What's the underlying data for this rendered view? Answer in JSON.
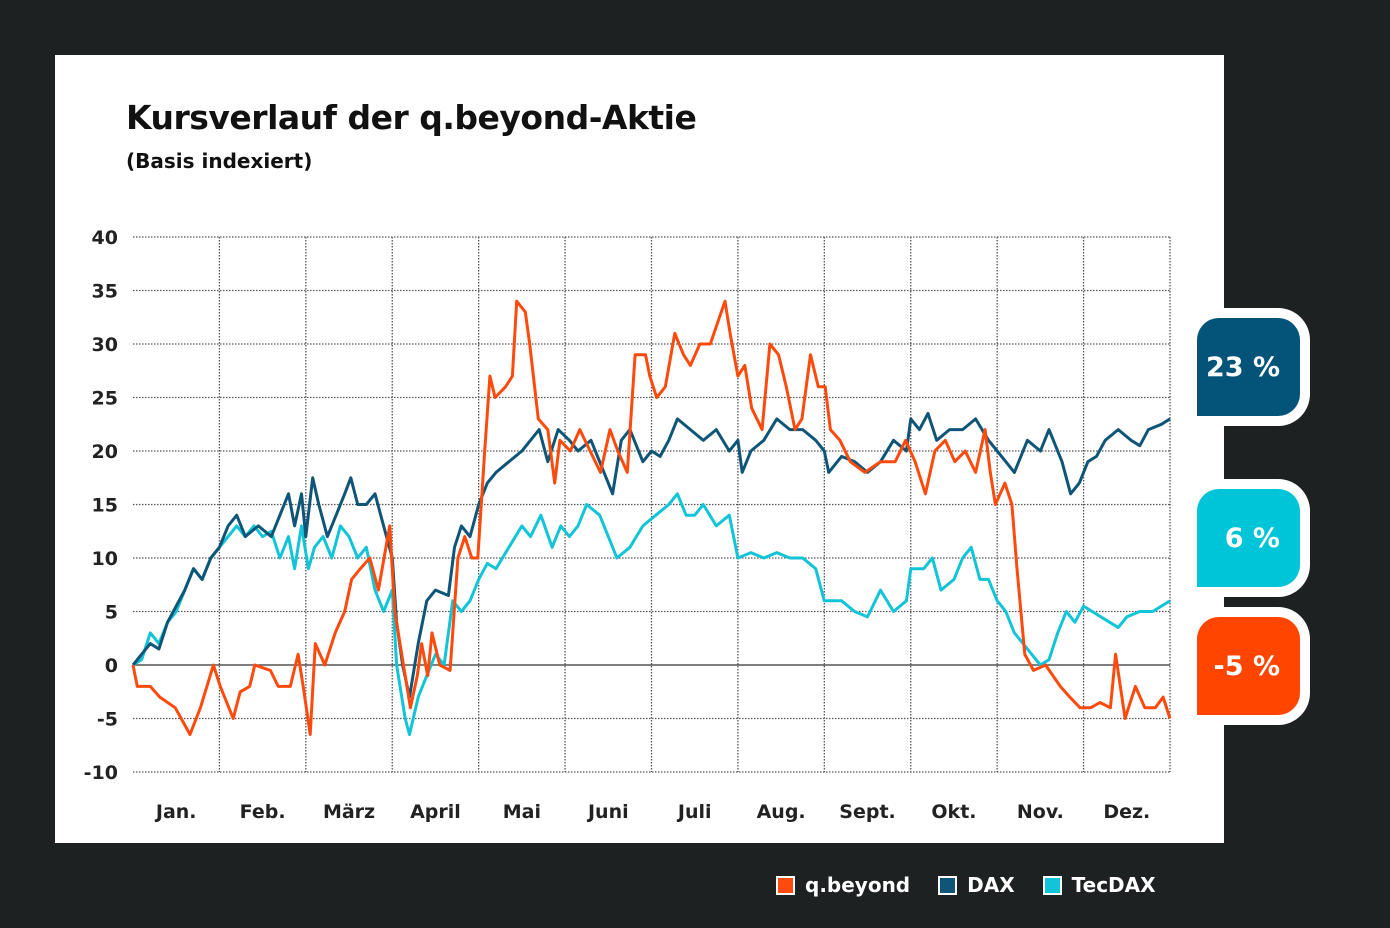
{
  "chart_data": {
    "type": "line",
    "title": "Kursverlauf der q.beyond-Aktie",
    "subtitle": "(Basis indexiert)",
    "xlabel": "",
    "ylabel": "",
    "x_units": "months since start of year",
    "ylim": [
      -10,
      40
    ],
    "yticks": [
      40,
      35,
      30,
      25,
      20,
      15,
      10,
      5,
      0,
      -5,
      -10
    ],
    "xlim": [
      0,
      12
    ],
    "categories": [
      "Jan.",
      "Feb.",
      "März",
      "April",
      "Mai",
      "Juni",
      "Juli",
      "Aug.",
      "Sept.",
      "Okt.",
      "Nov.",
      "Dez."
    ],
    "grid": true,
    "legend_position": "bottom-right",
    "series": [
      {
        "name": "q.beyond",
        "color": "#ff4a0d",
        "end_label": "-5 %",
        "x": [
          0,
          0.05,
          0.2,
          0.31,
          0.49,
          0.66,
          0.78,
          0.93,
          1.01,
          1.16,
          1.24,
          1.35,
          1.41,
          1.59,
          1.68,
          1.82,
          1.91,
          1.97,
          2.05,
          2.11,
          2.22,
          2.34,
          2.45,
          2.53,
          2.63,
          2.74,
          2.84,
          2.97,
          3.03,
          3.15,
          3.21,
          3.29,
          3.34,
          3.41,
          3.46,
          3.55,
          3.67,
          3.76,
          3.84,
          3.92,
          3.99,
          4.07,
          4.13,
          4.19,
          4.31,
          4.39,
          4.44,
          4.54,
          4.59,
          4.69,
          4.8,
          4.88,
          4.94,
          5.06,
          5.17,
          5.29,
          5.41,
          5.52,
          5.61,
          5.72,
          5.81,
          5.93,
          5.98,
          6.06,
          6.16,
          6.27,
          6.37,
          6.45,
          6.56,
          6.68,
          6.85,
          6.91,
          7.0,
          7.08,
          7.16,
          7.28,
          7.37,
          7.47,
          7.56,
          7.66,
          7.74,
          7.84,
          7.93,
          8.01,
          8.07,
          8.18,
          8.3,
          8.47,
          8.65,
          8.82,
          8.94,
          9.05,
          9.17,
          9.28,
          9.4,
          9.51,
          9.63,
          9.75,
          9.86,
          9.92,
          9.98,
          10.09,
          10.17,
          10.23,
          10.32,
          10.42,
          10.56,
          10.73,
          10.84,
          10.96,
          11.08,
          11.19,
          11.31,
          11.37,
          11.48,
          11.6,
          11.71,
          11.83,
          11.92,
          12.0
        ],
        "y": [
          0,
          -2,
          -2,
          -3,
          -4,
          -6.5,
          -4,
          0,
          -2,
          -5,
          -2.5,
          -2,
          0,
          -0.5,
          -2,
          -2,
          1,
          -2,
          -6.5,
          2,
          0,
          3,
          5,
          8,
          9,
          10,
          7,
          13,
          5,
          -1,
          -4,
          -1,
          2,
          -1,
          3,
          0,
          -0.5,
          10,
          12,
          10,
          10,
          20,
          27,
          25,
          26,
          27,
          34,
          33,
          30,
          23,
          22,
          17,
          21,
          20,
          22,
          20,
          18,
          22,
          20,
          18,
          29,
          29,
          27,
          25,
          26,
          31,
          29,
          28,
          30,
          30,
          34,
          31,
          27,
          28,
          24,
          22,
          30,
          29,
          26,
          22,
          23,
          29,
          26,
          26,
          22,
          21,
          19,
          18,
          19,
          19,
          21,
          19,
          16,
          20,
          21,
          19,
          20,
          18,
          22,
          18,
          15,
          17,
          15,
          9,
          1,
          -0.5,
          0,
          -2,
          -3,
          -4,
          -4,
          -3.5,
          -4,
          1,
          -5,
          -2,
          -4,
          -4,
          -3,
          -5
        ]
      },
      {
        "name": "DAX",
        "color": "#0f5577",
        "end_label": "23 %",
        "x": [
          0,
          0.1,
          0.2,
          0.3,
          0.4,
          0.5,
          0.6,
          0.7,
          0.8,
          0.9,
          1.0,
          1.1,
          1.2,
          1.3,
          1.45,
          1.6,
          1.7,
          1.8,
          1.87,
          1.95,
          2.0,
          2.08,
          2.15,
          2.25,
          2.35,
          2.45,
          2.52,
          2.6,
          2.7,
          2.8,
          2.9,
          3.0,
          3.05,
          3.12,
          3.2,
          3.3,
          3.4,
          3.5,
          3.65,
          3.72,
          3.8,
          3.9,
          4.0,
          4.1,
          4.2,
          4.35,
          4.5,
          4.6,
          4.7,
          4.8,
          4.92,
          5.05,
          5.15,
          5.3,
          5.45,
          5.55,
          5.65,
          5.75,
          5.9,
          6.0,
          6.1,
          6.2,
          6.3,
          6.45,
          6.6,
          6.75,
          6.9,
          7.0,
          7.05,
          7.15,
          7.3,
          7.45,
          7.6,
          7.75,
          7.9,
          8.0,
          8.05,
          8.2,
          8.35,
          8.5,
          8.65,
          8.8,
          8.95,
          9.0,
          9.1,
          9.2,
          9.3,
          9.45,
          9.6,
          9.75,
          9.9,
          10.0,
          10.1,
          10.2,
          10.35,
          10.5,
          10.6,
          10.75,
          10.85,
          10.95,
          11.05,
          11.15,
          11.25,
          11.4,
          11.55,
          11.65,
          11.75,
          11.9,
          12.0
        ],
        "y": [
          0,
          1,
          2,
          1.5,
          4,
          5.5,
          7,
          9,
          8,
          10,
          11,
          13,
          14,
          12,
          13,
          12,
          14,
          16,
          13,
          16,
          12,
          17.5,
          15,
          12,
          14,
          16,
          17.5,
          15,
          15,
          16,
          13,
          10,
          4,
          0,
          -3,
          2,
          6,
          7,
          6.5,
          11,
          13,
          12,
          15,
          17,
          18,
          19,
          20,
          21,
          22,
          19,
          22,
          21,
          20,
          21,
          18,
          16,
          21,
          22,
          19,
          20,
          19.5,
          21,
          23,
          22,
          21,
          22,
          20,
          21,
          18,
          20,
          21,
          23,
          22,
          22,
          21,
          20,
          18,
          19.5,
          19,
          18,
          19,
          21,
          20,
          23,
          22,
          23.5,
          21,
          22,
          22,
          23,
          21,
          20,
          19,
          18,
          21,
          20,
          22,
          19,
          16,
          17,
          19,
          19.5,
          21,
          22,
          21,
          20.5,
          22,
          22.5,
          23
        ]
      },
      {
        "name": "TecDAX",
        "color": "#11c4d7",
        "end_label": "6 %",
        "x": [
          0,
          0.1,
          0.2,
          0.3,
          0.4,
          0.5,
          0.6,
          0.7,
          0.8,
          0.9,
          1.0,
          1.1,
          1.2,
          1.3,
          1.4,
          1.5,
          1.6,
          1.7,
          1.8,
          1.87,
          1.95,
          2.03,
          2.1,
          2.2,
          2.3,
          2.4,
          2.5,
          2.6,
          2.7,
          2.8,
          2.9,
          3.0,
          3.05,
          3.15,
          3.2,
          3.3,
          3.4,
          3.5,
          3.6,
          3.7,
          3.8,
          3.9,
          4.0,
          4.1,
          4.2,
          4.35,
          4.5,
          4.6,
          4.72,
          4.85,
          4.95,
          5.05,
          5.15,
          5.25,
          5.4,
          5.5,
          5.6,
          5.75,
          5.9,
          6.05,
          6.2,
          6.3,
          6.4,
          6.5,
          6.6,
          6.75,
          6.9,
          7.0,
          7.15,
          7.3,
          7.45,
          7.6,
          7.75,
          7.9,
          8.0,
          8.1,
          8.2,
          8.35,
          8.5,
          8.65,
          8.8,
          8.95,
          9.0,
          9.15,
          9.25,
          9.35,
          9.5,
          9.6,
          9.7,
          9.8,
          9.9,
          10.0,
          10.1,
          10.2,
          10.3,
          10.4,
          10.5,
          10.6,
          10.7,
          10.8,
          10.9,
          11.0,
          11.1,
          11.3,
          11.4,
          11.5,
          11.65,
          11.8,
          11.9,
          12.0
        ],
        "y": [
          0,
          0.5,
          3,
          2,
          4,
          5,
          7,
          9,
          8,
          10,
          11,
          12,
          13,
          12,
          13,
          12,
          12.5,
          10,
          12,
          9,
          13,
          9,
          11,
          12,
          10,
          13,
          12,
          10,
          11,
          7,
          5,
          7,
          0,
          -5,
          -6.5,
          -3,
          -1,
          1,
          0,
          6,
          5,
          6,
          8,
          9.5,
          9,
          11,
          13,
          12,
          14,
          11,
          13,
          12,
          13,
          15,
          14,
          12,
          10,
          11,
          13,
          14,
          15,
          16,
          14,
          14,
          15,
          13,
          14,
          10,
          10.5,
          10,
          10.5,
          10,
          10,
          9,
          6,
          6,
          6,
          5,
          4.5,
          7,
          5,
          6,
          9,
          9,
          10,
          7,
          8,
          10,
          11,
          8,
          8,
          6,
          5,
          3,
          2,
          1,
          0,
          0.5,
          3,
          5,
          4,
          5.5,
          5,
          4,
          3.5,
          4.5,
          5,
          5,
          5.5,
          6
        ]
      }
    ]
  }
}
